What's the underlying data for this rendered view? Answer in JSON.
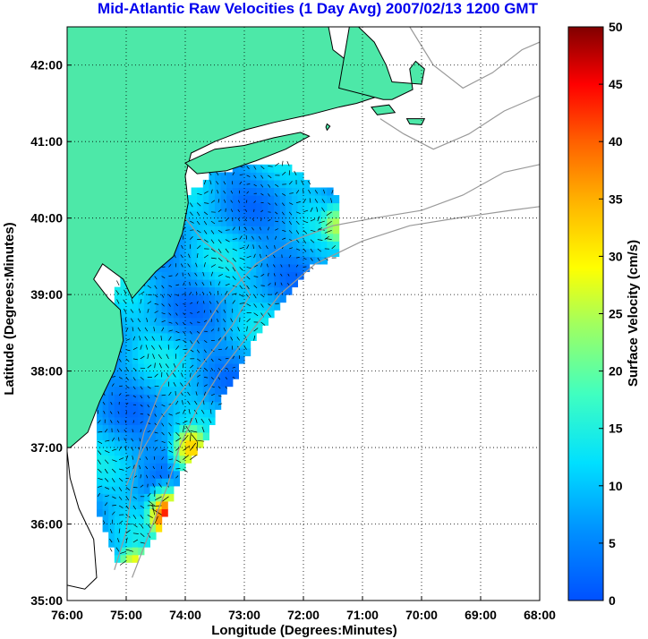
{
  "title": "Mid-Atlantic Raw Velocities (1 Day Avg) 2007/02/13 1200 GMT",
  "xlabel": "Longitude (Degrees:Minutes)",
  "ylabel": "Latitude (Degrees:Minutes)",
  "colorbar_label": "Surface Velocity (cm/s)",
  "colors": {
    "land": "#4de8a8",
    "coast": "#000000",
    "bathymetry": "#999999",
    "title": "#0000ee",
    "grid": "#000000",
    "arrows": "#000000"
  },
  "chart_data": {
    "type": "heatmap",
    "title": "Mid-Atlantic Raw Velocities (1 Day Avg) 2007/02/13 1200 GMT",
    "xlabel": "Longitude (Degrees:Minutes)",
    "ylabel": "Latitude (Degrees:Minutes)",
    "xlim": [
      -76,
      -68
    ],
    "ylim": [
      35,
      42.5
    ],
    "xticks": [
      -76,
      -75,
      -74,
      -73,
      -72,
      -71,
      -70,
      -69,
      -68
    ],
    "xtick_labels": [
      "76:00",
      "75:00",
      "74:00",
      "73:00",
      "72:00",
      "71:00",
      "70:00",
      "69:00",
      "68:00"
    ],
    "yticks": [
      35,
      36,
      37,
      38,
      39,
      40,
      41,
      42
    ],
    "ytick_labels": [
      "35:00",
      "36:00",
      "37:00",
      "38:00",
      "39:00",
      "40:00",
      "41:00",
      "42:00"
    ],
    "grid": "dotted",
    "colorbar": {
      "label": "Surface Velocity (cm/s)",
      "min": 0,
      "max": 50,
      "ticks": [
        0,
        5,
        10,
        15,
        20,
        25,
        30,
        35,
        40,
        45,
        50
      ],
      "tick_labels": [
        "0",
        "5",
        "10",
        "15",
        "20",
        "25",
        "30",
        "35",
        "40",
        "45",
        "50"
      ],
      "colormap": "jet",
      "placement": "right"
    },
    "high_velocity_regions": [
      {
        "name": "",
        "lon": -71.45,
        "lat": 39.9,
        "speed_cm_s": 25
      },
      {
        "name": "",
        "lon": -73.9,
        "lat": 37.0,
        "speed_cm_s": 33
      },
      {
        "name": "",
        "lon": -74.3,
        "lat": 36.1,
        "speed_cm_s": 45
      },
      {
        "name": "",
        "lon": -74.85,
        "lat": 35.45,
        "speed_cm_s": 30
      }
    ]
  }
}
